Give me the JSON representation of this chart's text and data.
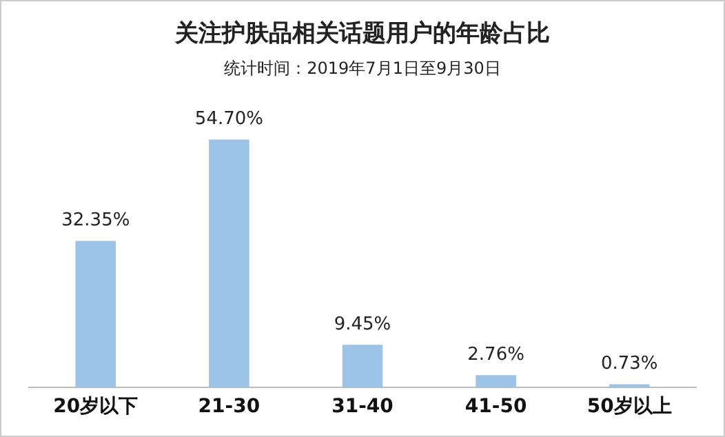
{
  "chart_data": {
    "type": "bar",
    "title": "关注护肤品相关话题用户的年龄占比",
    "subtitle": "统计时间：2019年7月1日至9月30日",
    "categories": [
      "20岁以下",
      "21-30",
      "31-40",
      "41-50",
      "50岁以上"
    ],
    "values": [
      32.35,
      54.7,
      9.45,
      2.76,
      0.73
    ],
    "value_labels": [
      "32.35%",
      "54.70%",
      "9.45%",
      "2.76%",
      "0.73%"
    ],
    "color": "#9dc3e6",
    "tick_labels": "x",
    "grid": false,
    "legend": false
  }
}
